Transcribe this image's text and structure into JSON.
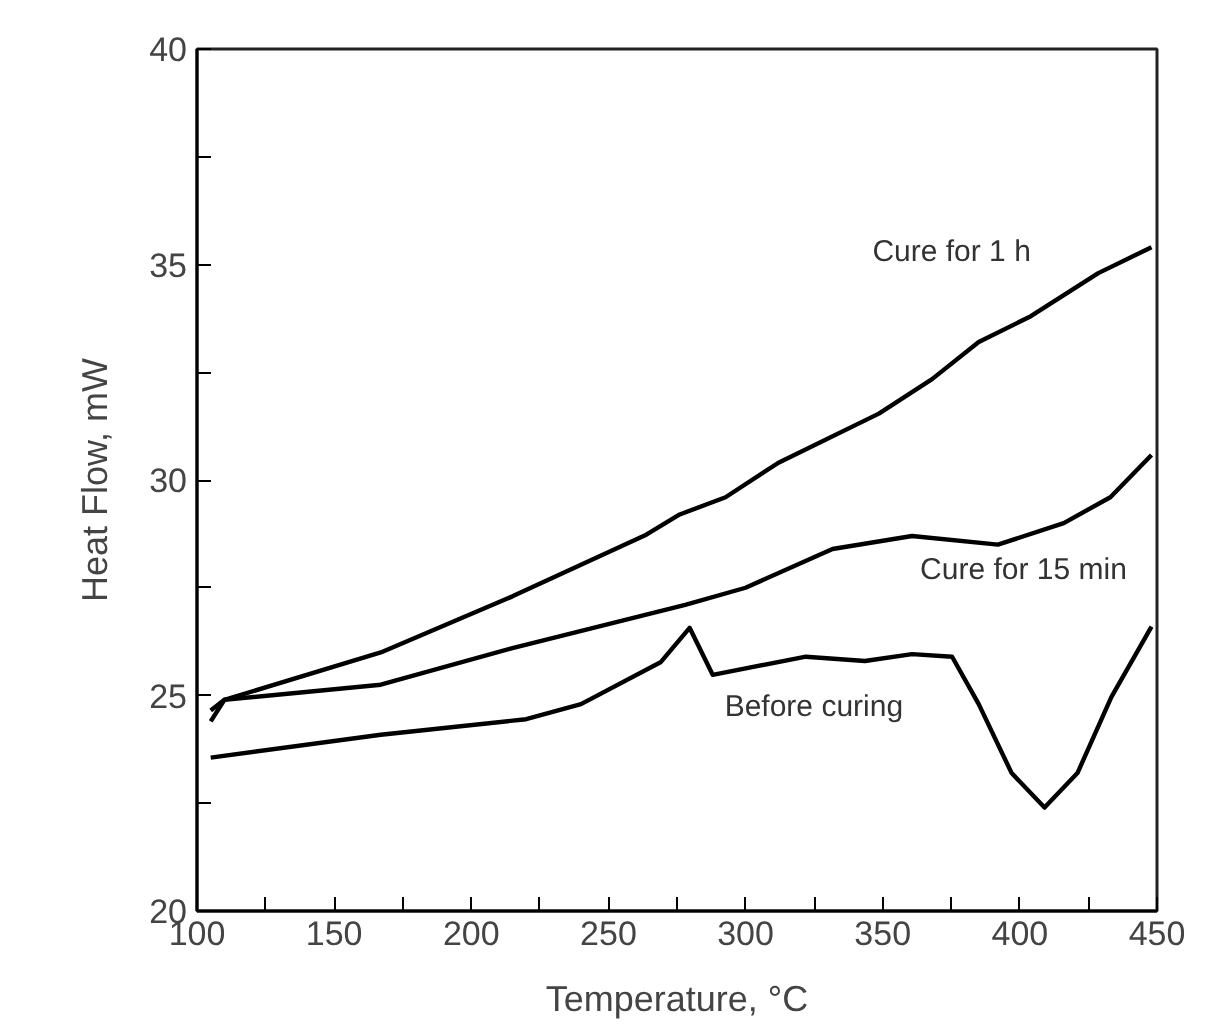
{
  "chart_data": {
    "type": "line",
    "xlabel": "Temperature, °C",
    "ylabel": "Heat Flow, mW",
    "xlim": [
      100,
      450
    ],
    "ylim": [
      20,
      40
    ],
    "xticks": [
      100,
      {
        "value": 125,
        "label": null
      },
      150,
      {
        "value": 175,
        "label": null
      },
      200,
      {
        "value": 225,
        "label": null
      },
      250,
      {
        "value": 275,
        "label": null
      },
      300,
      {
        "value": 325,
        "label": null
      },
      350,
      {
        "value": 375,
        "label": null
      },
      400,
      {
        "value": 425,
        "label": null
      },
      450
    ],
    "yticks": [
      20,
      {
        "value": 22.5,
        "label": null
      },
      25,
      {
        "value": 27.5,
        "label": null
      },
      30,
      {
        "value": 32.5,
        "label": null
      },
      35,
      {
        "value": 37.5,
        "label": null
      },
      40
    ],
    "grid": false,
    "legend": false,
    "marker": "none",
    "line_style": "solid",
    "series": [
      {
        "name": "Before curing",
        "color": "#000000",
        "x": [
          105,
          167,
          220,
          240,
          269,
          279.6,
          288,
          322,
          343.5,
          360.7,
          375.3,
          385,
          397,
          409,
          421,
          433.4,
          448
        ],
        "values": [
          23.56,
          24.09,
          24.45,
          24.8,
          25.77,
          26.57,
          25.48,
          25.9,
          25.8,
          25.96,
          25.9,
          24.8,
          23.2,
          22.4,
          23.2,
          24.97,
          26.6
        ]
      },
      {
        "name": "Cure for 15 min",
        "color": "#000000",
        "x": [
          105,
          110,
          167,
          215,
          278,
          300,
          331.7,
          360.7,
          392,
          416,
          433,
          448
        ],
        "values": [
          24.65,
          24.9,
          25.25,
          26.1,
          27.1,
          27.5,
          28.4,
          28.7,
          28.5,
          29.0,
          29.6,
          30.58
        ]
      },
      {
        "name": "Cure for 1 h",
        "color": "#000000",
        "x": [
          105,
          110,
          167,
          215,
          263.8,
          276,
          292.7,
          312,
          348.6,
          368,
          385,
          404,
          428.6,
          448
        ],
        "values": [
          24.4,
          24.9,
          26.0,
          27.3,
          28.73,
          29.2,
          29.6,
          30.4,
          31.54,
          32.34,
          33.2,
          33.8,
          34.8,
          35.4
        ]
      }
    ]
  }
}
